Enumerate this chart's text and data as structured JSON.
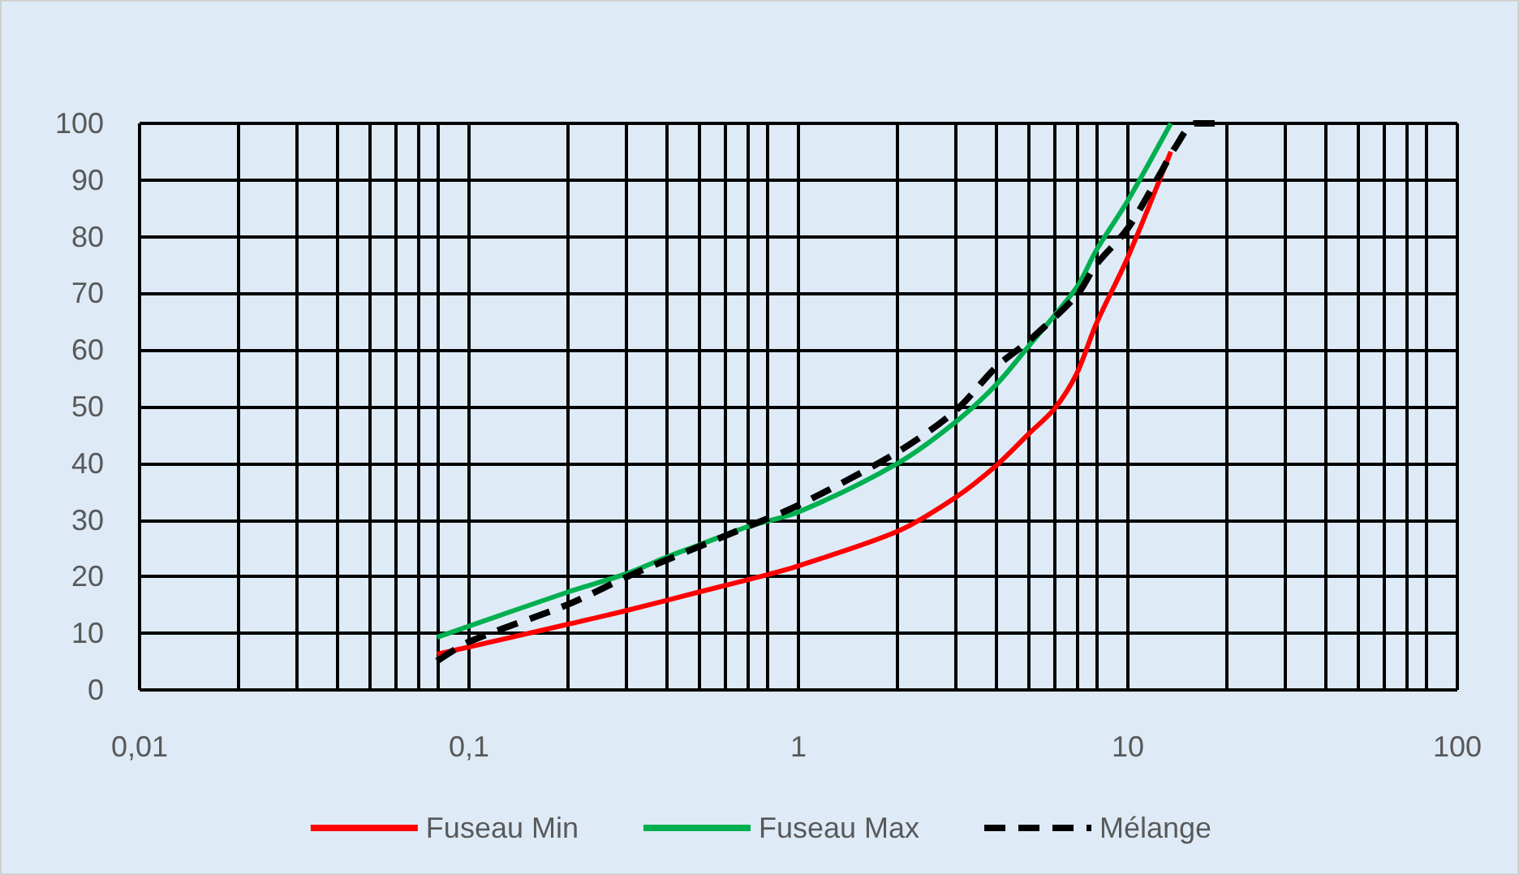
{
  "chart_data": {
    "type": "line",
    "xlim": [
      0.01,
      100
    ],
    "xticks": [
      {
        "value": 0.01,
        "label": "0,01"
      },
      {
        "value": 0.02,
        "label": null
      },
      {
        "value": 0.03,
        "label": null
      },
      {
        "value": 0.04,
        "label": null
      },
      {
        "value": 0.05,
        "label": null
      },
      {
        "value": 0.06,
        "label": null
      },
      {
        "value": 0.07,
        "label": null
      },
      {
        "value": 0.08,
        "label": null
      },
      {
        "value": 0.1,
        "label": "0,1"
      },
      {
        "value": 0.2,
        "label": null
      },
      {
        "value": 0.3,
        "label": null
      },
      {
        "value": 0.4,
        "label": null
      },
      {
        "value": 0.5,
        "label": null
      },
      {
        "value": 0.6,
        "label": null
      },
      {
        "value": 0.7,
        "label": null
      },
      {
        "value": 0.8,
        "label": null
      },
      1,
      {
        "value": 2,
        "label": null
      },
      {
        "value": 3,
        "label": null
      },
      {
        "value": 4,
        "label": null
      },
      {
        "value": 5,
        "label": null
      },
      {
        "value": 6,
        "label": null
      },
      {
        "value": 7,
        "label": null
      },
      {
        "value": 8,
        "label": null
      },
      10,
      {
        "value": 20,
        "label": null
      },
      {
        "value": 30,
        "label": null
      },
      {
        "value": 40,
        "label": null
      },
      {
        "value": 50,
        "label": null
      },
      {
        "value": 60,
        "label": null
      },
      {
        "value": 70,
        "label": null
      },
      {
        "value": 80,
        "label": null
      },
      100
    ],
    "ylim": [
      0,
      100
    ],
    "yticks": [
      0,
      10,
      20,
      30,
      40,
      50,
      60,
      70,
      80,
      90,
      100
    ],
    "log": "x",
    "grid": true,
    "legend": "bottom",
    "marker": "none",
    "line_style": "solid",
    "series": [
      {
        "name": "Fuseau Min",
        "color": "#ff0000",
        "x": [
          0.08,
          0.2,
          0.3,
          0.5,
          0.8,
          1,
          2,
          3,
          4,
          5,
          6,
          7,
          8,
          10,
          13.5
        ],
        "values": [
          6.3,
          11.6,
          14,
          17.3,
          20.3,
          21.9,
          28,
          34,
          39.7,
          45.2,
          49.7,
          55.9,
          64.5,
          76.4,
          95
        ]
      },
      {
        "name": "Fuseau Max",
        "color": "#00b050",
        "x": [
          0.08,
          0.2,
          0.3,
          0.4,
          0.5,
          0.7,
          1,
          2,
          3,
          4,
          5,
          7,
          8,
          10,
          13.5
        ],
        "values": [
          9.3,
          17.3,
          20.5,
          23.5,
          25.6,
          28.8,
          31.4,
          40,
          47.3,
          54,
          60.7,
          71.1,
          77.5,
          86.4,
          100
        ]
      },
      {
        "name": "Mélange",
        "color": "#000000",
        "line_style": "dashed",
        "x": [
          0.08,
          0.1,
          0.2,
          0.3,
          0.4,
          0.7,
          1,
          2,
          3,
          4,
          5,
          7,
          8,
          10,
          12.5,
          14,
          16,
          20
        ],
        "values": [
          5.1,
          8.5,
          15.1,
          19.9,
          23,
          28.8,
          32.6,
          42,
          49.3,
          57.1,
          61.6,
          69.7,
          75,
          81.5,
          91,
          96,
          100,
          100
        ]
      }
    ]
  }
}
